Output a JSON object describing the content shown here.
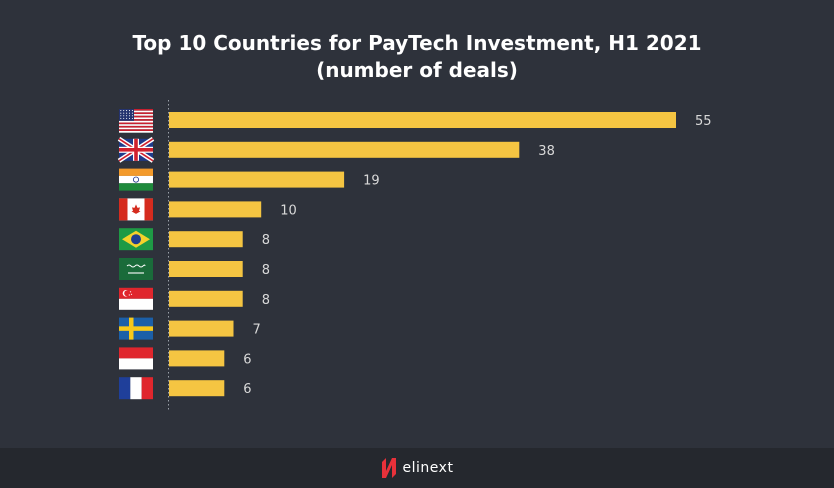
{
  "chart_data": {
    "type": "bar",
    "orientation": "horizontal",
    "title": "Top 10 Countries for PayTech Investment, H1 2021",
    "subtitle": "(number of deals)",
    "categories": [
      "United States",
      "United Kingdom",
      "India",
      "Canada",
      "Brazil",
      "Saudi Arabia",
      "Singapore",
      "Sweden",
      "Indonesia",
      "France"
    ],
    "flag_icons": [
      "flag-us-icon",
      "flag-uk-icon",
      "flag-india-icon",
      "flag-canada-icon",
      "flag-brazil-icon",
      "flag-saudi-arabia-icon",
      "flag-singapore-icon",
      "flag-sweden-icon",
      "flag-indonesia-icon",
      "flag-france-icon"
    ],
    "values": [
      55,
      38,
      19,
      10,
      8,
      8,
      8,
      7,
      6,
      6
    ],
    "xlim": [
      0,
      55
    ],
    "grid": false,
    "bar_color": "#f5c542",
    "label_color": "#d9d9d9"
  },
  "footer": {
    "brand_name": "elinext",
    "logo_icon": "elinext-logo-icon"
  }
}
